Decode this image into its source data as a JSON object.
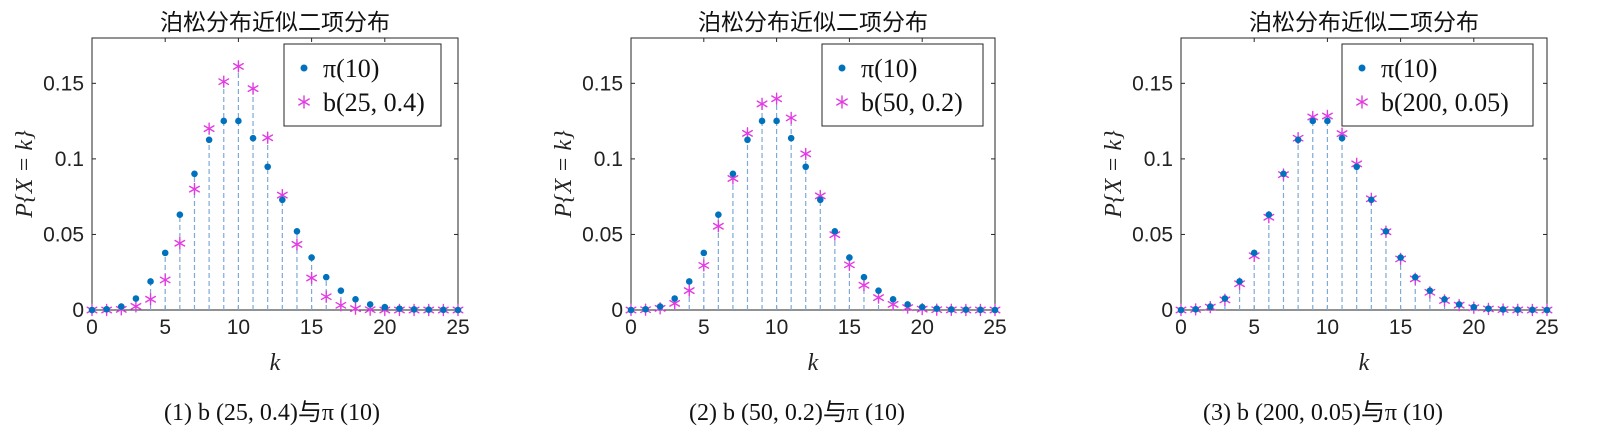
{
  "colors": {
    "poisson": "#0072BD",
    "binomial": "#E23BE2",
    "stem": "#7FA9D6",
    "axes": "#262626"
  },
  "chart_data": [
    {
      "type": "scatter",
      "title": "泊松分布近似二项分布",
      "xlabel": "k",
      "ylabel": "P{X = k}",
      "xlim": [
        0,
        25
      ],
      "ylim": [
        0,
        0.18
      ],
      "xticks": [
        "0",
        "5",
        "10",
        "15",
        "20",
        "25"
      ],
      "yticks": [
        "0",
        "0.05",
        "0.1",
        "0.15"
      ],
      "legend_position": "top-right",
      "caption": "(1) b (25, 0.4)与π (10)",
      "x": [
        0,
        1,
        2,
        3,
        4,
        5,
        6,
        7,
        8,
        9,
        10,
        11,
        12,
        13,
        14,
        15,
        16,
        17,
        18,
        19,
        20,
        21,
        22,
        23,
        24,
        25
      ],
      "series": [
        {
          "name": "π(10)",
          "marker": "dot",
          "values": [
            0.0,
            0.0005,
            0.0023,
            0.0076,
            0.0189,
            0.0378,
            0.0631,
            0.0901,
            0.1126,
            0.1251,
            0.1251,
            0.1137,
            0.0948,
            0.0729,
            0.0521,
            0.0347,
            0.0217,
            0.0128,
            0.0071,
            0.0037,
            0.0019,
            0.0009,
            0.0004,
            0.0002,
            0.0001,
            0.0
          ]
        },
        {
          "name": "b(25, 0.4)",
          "marker": "asterisk",
          "values": [
            0.0,
            0.0,
            0.0004,
            0.0024,
            0.0071,
            0.0199,
            0.0442,
            0.08,
            0.12,
            0.1511,
            0.1612,
            0.1465,
            0.114,
            0.076,
            0.0434,
            0.0212,
            0.0088,
            0.0031,
            0.0009,
            0.0002,
            0.0,
            0.0,
            0.0,
            0.0,
            0.0,
            0.0
          ]
        }
      ]
    },
    {
      "type": "scatter",
      "title": "泊松分布近似二项分布",
      "xlabel": "k",
      "ylabel": "P{X = k}",
      "xlim": [
        0,
        25
      ],
      "ylim": [
        0,
        0.18
      ],
      "xticks": [
        "0",
        "5",
        "10",
        "15",
        "20",
        "25"
      ],
      "yticks": [
        "0",
        "0.05",
        "0.1",
        "0.15"
      ],
      "legend_position": "top-right",
      "caption": "(2) b (50, 0.2)与π (10)",
      "x": [
        0,
        1,
        2,
        3,
        4,
        5,
        6,
        7,
        8,
        9,
        10,
        11,
        12,
        13,
        14,
        15,
        16,
        17,
        18,
        19,
        20,
        21,
        22,
        23,
        24,
        25
      ],
      "series": [
        {
          "name": "π(10)",
          "marker": "dot",
          "values": [
            0.0,
            0.0005,
            0.0023,
            0.0076,
            0.0189,
            0.0378,
            0.0631,
            0.0901,
            0.1126,
            0.1251,
            0.1251,
            0.1137,
            0.0948,
            0.0729,
            0.0521,
            0.0347,
            0.0217,
            0.0128,
            0.0071,
            0.0037,
            0.0019,
            0.0009,
            0.0004,
            0.0002,
            0.0001,
            0.0
          ]
        },
        {
          "name": "b(50, 0.2)",
          "marker": "asterisk",
          "values": [
            0.0,
            0.0002,
            0.0011,
            0.0044,
            0.0128,
            0.0295,
            0.0554,
            0.087,
            0.1169,
            0.1364,
            0.1398,
            0.1271,
            0.1033,
            0.0755,
            0.0499,
            0.0299,
            0.0164,
            0.0082,
            0.0037,
            0.0016,
            0.0006,
            0.0002,
            0.0001,
            0.0,
            0.0,
            0.0
          ]
        }
      ]
    },
    {
      "type": "scatter",
      "title": "泊松分布近似二项分布",
      "xlabel": "k",
      "ylabel": "P{X = k}",
      "xlim": [
        0,
        25
      ],
      "ylim": [
        0,
        0.18
      ],
      "xticks": [
        "0",
        "5",
        "10",
        "15",
        "20",
        "25"
      ],
      "yticks": [
        "0",
        "0.05",
        "0.1",
        "0.15"
      ],
      "legend_position": "top-right",
      "caption": "(3) b (200, 0.05)与π (10)",
      "x": [
        0,
        1,
        2,
        3,
        4,
        5,
        6,
        7,
        8,
        9,
        10,
        11,
        12,
        13,
        14,
        15,
        16,
        17,
        18,
        19,
        20,
        21,
        22,
        23,
        24,
        25
      ],
      "series": [
        {
          "name": "π(10)",
          "marker": "dot",
          "values": [
            0.0,
            0.0005,
            0.0023,
            0.0076,
            0.0189,
            0.0378,
            0.0631,
            0.0901,
            0.1126,
            0.1251,
            0.1251,
            0.1137,
            0.0948,
            0.0729,
            0.0521,
            0.0347,
            0.0217,
            0.0128,
            0.0071,
            0.0037,
            0.0019,
            0.0009,
            0.0004,
            0.0002,
            0.0001,
            0.0
          ]
        },
        {
          "name": "b(200, 0.05)",
          "marker": "asterisk",
          "values": [
            0.0,
            0.0004,
            0.0019,
            0.0067,
            0.0174,
            0.0359,
            0.0614,
            0.0896,
            0.1137,
            0.1277,
            0.1284,
            0.1167,
            0.0967,
            0.0736,
            0.0518,
            0.0338,
            0.0206,
            0.0117,
            0.0063,
            0.0032,
            0.0015,
            0.0007,
            0.0003,
            0.0001,
            0.0,
            0.0
          ]
        }
      ]
    }
  ]
}
